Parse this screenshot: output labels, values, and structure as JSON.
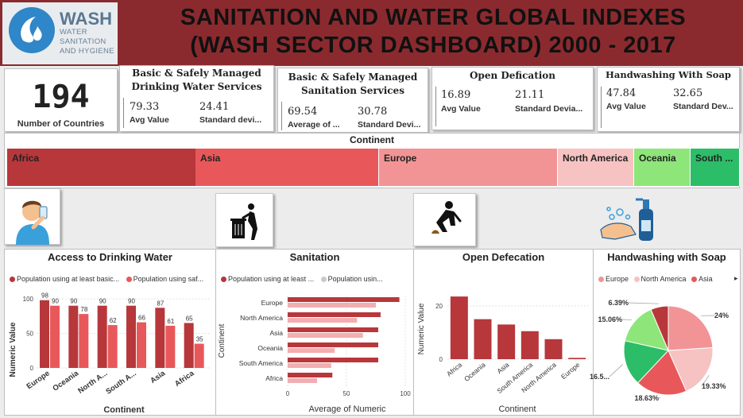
{
  "header": {
    "logo_word": "WASH",
    "logo_lines": [
      "WATER",
      "SANITATION",
      "AND HYGIENE"
    ],
    "title_line1": "SANITATION AND WATER GLOBAL INDEXES",
    "title_line2": "(WASH SECTOR DASHBOARD) 2000 - 2017"
  },
  "kpis": {
    "countries": {
      "value": "194",
      "label": "Number of Countries"
    },
    "drinking": {
      "title": "Basic & Safely Managed Drinking Water Services",
      "avg": "79.33",
      "avg_label": "Avg Value",
      "std": "24.41",
      "std_label": "Standard devi..."
    },
    "sanitation": {
      "title": "Basic & Safely Managed Sanitation Services",
      "avg": "69.54",
      "avg_label": "Average of ...",
      "std": "30.78",
      "std_label": "Standard Devi..."
    },
    "defecation": {
      "title": "Open Defication",
      "avg": "16.89",
      "avg_label": "Avg Value",
      "std": "21.11",
      "std_label": "Standard Devia..."
    },
    "handwashing": {
      "title": "Handwashing With Soap",
      "avg": "47.84",
      "avg_label": "Avg Value",
      "std": "32.65",
      "std_label": "Standard Dev..."
    }
  },
  "continent_filter": {
    "title": "Continent",
    "items": [
      {
        "label": "Africa",
        "color": "#b7373b"
      },
      {
        "label": "Asia",
        "color": "#e8585a"
      },
      {
        "label": "Europe",
        "color": "#f29495"
      },
      {
        "label": "North America",
        "color": "#f7c2c2"
      },
      {
        "label": "Oceania",
        "color": "#8ee57a"
      },
      {
        "label": "South ...",
        "color": "#2cbd68"
      }
    ]
  },
  "icons": [
    "drinking-person-icon",
    "trash-bin-icon",
    "squatting-person-icon",
    "handwashing-soap-icon"
  ],
  "charts": {
    "drinking": {
      "title": "Access to Drinking Water",
      "legend": [
        "Population using at least basic...",
        "Population using saf..."
      ],
      "ylabel": "Numeric Value",
      "xlabel": "Continent"
    },
    "sanitation": {
      "title": "Sanitation",
      "legend": [
        "Population using at least ...",
        "Population usin..."
      ],
      "ylabel": "Continent",
      "xlabel": "Average of Numeric"
    },
    "defecation": {
      "title": "Open Defecation",
      "ylabel": "Numeric Value",
      "xlabel": "Continent"
    },
    "handwashing": {
      "title": "Handwashing with Soap",
      "legend": [
        "Europe",
        "North America",
        "Asia"
      ]
    }
  },
  "chart_data": [
    {
      "type": "bar",
      "title": "Access to Drinking Water",
      "xlabel": "Continent",
      "ylabel": "Numeric Value",
      "categories": [
        "Europe",
        "Oceania",
        "North A...",
        "South A...",
        "Asia",
        "Africa"
      ],
      "ylim": [
        0,
        100
      ],
      "yticks": [
        0,
        50,
        100
      ],
      "series": [
        {
          "name": "Population using at least basic...",
          "color": "#b7373b",
          "values": [
            98,
            90,
            90,
            90,
            87,
            65
          ]
        },
        {
          "name": "Population using saf...",
          "color": "#e8585a",
          "values": [
            90,
            78,
            62,
            66,
            61,
            35
          ]
        }
      ]
    },
    {
      "type": "bar",
      "orientation": "horizontal",
      "title": "Sanitation",
      "xlabel": "Average of Numeric",
      "ylabel": "Continent",
      "categories": [
        "Europe",
        "North America",
        "Asia",
        "Oceania",
        "South America",
        "Africa"
      ],
      "xlim": [
        0,
        100
      ],
      "xticks": [
        0,
        50,
        100
      ],
      "series": [
        {
          "name": "Population using at least ...",
          "color": "#b7373b",
          "values": [
            95,
            79,
            77,
            77,
            77,
            38
          ]
        },
        {
          "name": "Population usin...",
          "color": "#f2aeb0",
          "values": [
            75,
            59,
            64,
            40,
            37,
            25
          ]
        }
      ]
    },
    {
      "type": "bar",
      "title": "Open Defecation",
      "xlabel": "Continent",
      "ylabel": "Numeric Value",
      "categories": [
        "Africa",
        "Oceania",
        "Asia",
        "South America",
        "North America",
        "Europe"
      ],
      "ylim": [
        0,
        28
      ],
      "yticks": [
        0,
        20
      ],
      "series": [
        {
          "name": "Numeric Value",
          "color": "#b7373b",
          "values": [
            23.5,
            15,
            13,
            10.5,
            7.5,
            0.5
          ]
        }
      ]
    },
    {
      "type": "pie",
      "title": "Handwashing with Soap",
      "slices": [
        {
          "label": "24%",
          "value": 24.0,
          "color": "#f29495"
        },
        {
          "label": "19.33%",
          "value": 19.33,
          "color": "#f7c2c2"
        },
        {
          "label": "18.63%",
          "value": 18.63,
          "color": "#e8585a"
        },
        {
          "label": "16.5...",
          "value": 16.5,
          "color": "#2cbd68"
        },
        {
          "label": "15.06%",
          "value": 15.06,
          "color": "#8ee57a"
        },
        {
          "label": "6.39%",
          "value": 6.39,
          "color": "#b7373b"
        }
      ]
    }
  ]
}
